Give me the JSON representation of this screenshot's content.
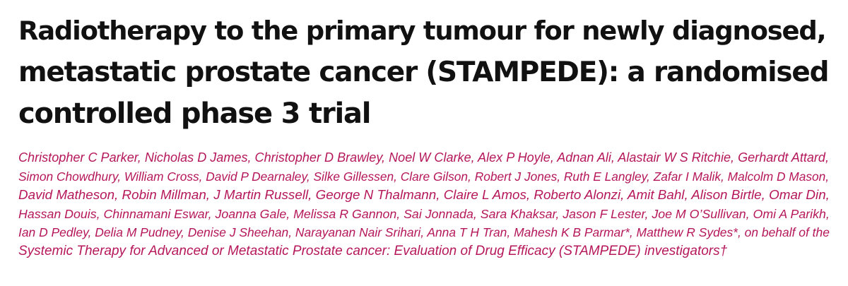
{
  "article": {
    "title_lines": [
      "Radiotherapy to the primary tumour for newly diagnosed,",
      "metastatic prostate cancer (STAMPEDE): a randomised",
      "controlled phase 3 trial"
    ],
    "author_lines": [
      "Christopher C Parker, Nicholas D James, Christopher D Brawley, Noel W Clarke, Alex P Hoyle, Adnan Ali, Alastair W S Ritchie, Gerhardt Attard,",
      "Simon Chowdhury, William Cross, David P Dearnaley, Silke Gillessen, Clare Gilson, Robert J Jones, Ruth E Langley, Zafar I Malik, Malcolm D Mason,",
      "David Matheson, Robin Millman, J Martin Russell, George N Thalmann, Claire L Amos, Roberto Alonzi, Amit Bahl, Alison Birtle, Omar Din,",
      "Hassan Douis, Chinnamani Eswar, Joanna Gale, Melissa R Gannon, Sai Jonnada, Sara Khaksar, Jason F Lester, Joe M O’Sullivan, Omi A Parikh,",
      "Ian D Pedley, Delia M Pudney, Denise J Sheehan, Narayanan Nair Srihari, Anna T H Tran, Mahesh K B Parmar*, Matthew R Sydes*, on behalf of the",
      "Systemic Therapy for Advanced or Metastatic Prostate cancer: Evaluation of Drug Efficacy (STAMPEDE) investigators†"
    ],
    "colors": {
      "title": "#111111",
      "authors": "#b5175a"
    }
  }
}
